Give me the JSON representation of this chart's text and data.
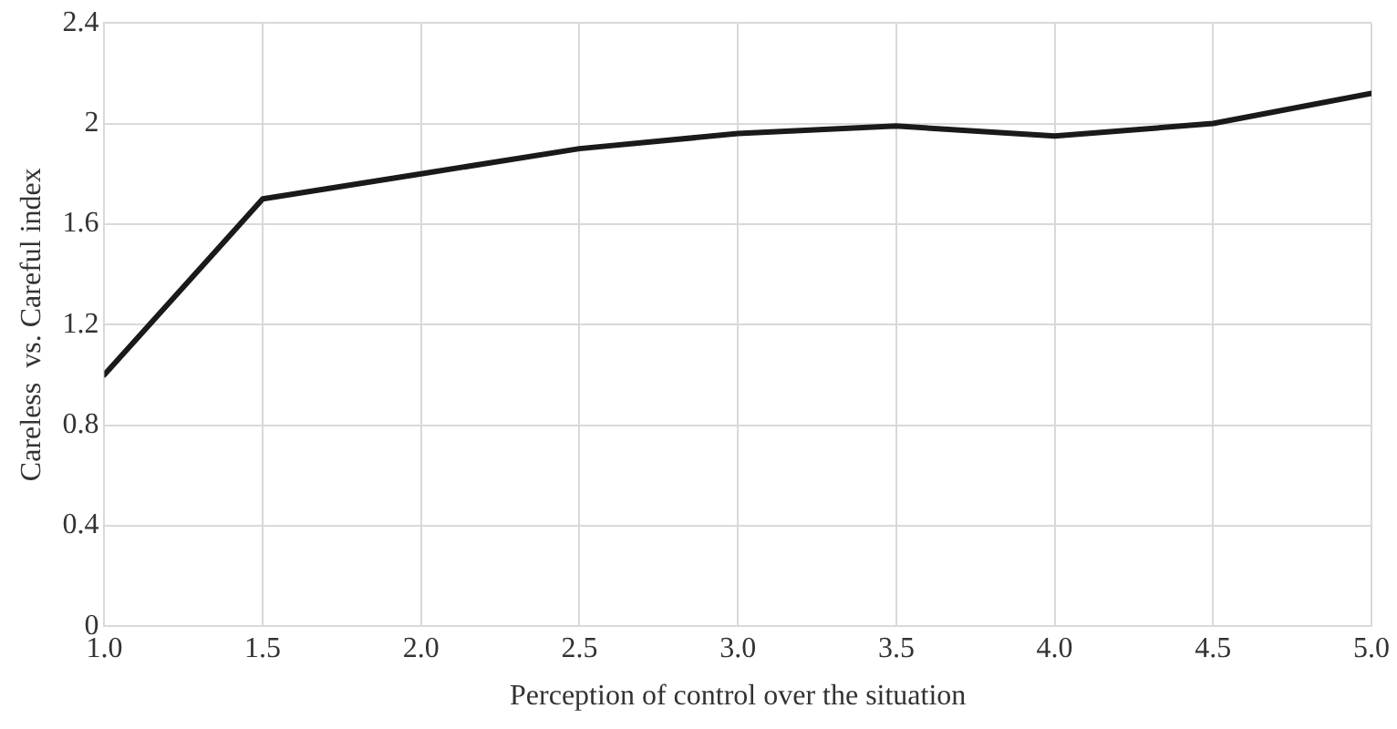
{
  "chart_data": {
    "type": "line",
    "xlabel": "Perception of control over the situation",
    "ylabel": "Careless  vs. Careful index",
    "x": [
      1.0,
      1.5,
      2.0,
      2.5,
      3.0,
      3.5,
      4.0,
      4.5,
      5.0
    ],
    "series": [
      {
        "color": "#1a1a1a",
        "values": [
          1.0,
          1.7,
          1.8,
          1.9,
          1.96,
          1.99,
          1.95,
          2.0,
          2.12
        ]
      }
    ],
    "xlim": [
      1.0,
      5.0
    ],
    "xticks": [
      {
        "value": 1.0,
        "label": "1.0"
      },
      {
        "value": 1.5,
        "label": "1.5"
      },
      {
        "value": 2.0,
        "label": "2.0"
      },
      {
        "value": 2.5,
        "label": "2.5"
      },
      {
        "value": 3.0,
        "label": "3.0"
      },
      {
        "value": 3.5,
        "label": "3.5"
      },
      {
        "value": 4.0,
        "label": "4.0"
      },
      {
        "value": 4.5,
        "label": "4.5"
      },
      {
        "value": 5.0,
        "label": "5.0"
      }
    ],
    "ylim": [
      0,
      2.4
    ],
    "yticks": [
      0,
      0.4,
      0.8,
      1.2,
      1.6,
      2,
      2.4
    ],
    "grid": true,
    "legend": false,
    "marker": "none",
    "line_style": "solid"
  }
}
